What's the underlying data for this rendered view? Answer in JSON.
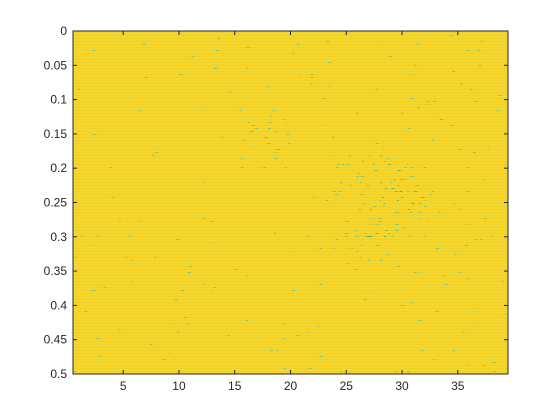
{
  "chart_data": {
    "type": "heatmap",
    "title": "",
    "xlabel": "",
    "ylabel": "",
    "x_range": [
      0.5,
      39.5
    ],
    "y_range": [
      0,
      0.5
    ],
    "y_direction": "reversed",
    "x_ticks": [
      5,
      10,
      15,
      20,
      25,
      30,
      35
    ],
    "x_tick_labels": [
      "5",
      "10",
      "15",
      "20",
      "25",
      "30",
      "35"
    ],
    "y_ticks": [
      0,
      0.05,
      0.1,
      0.15,
      0.2,
      0.25,
      0.3,
      0.35,
      0.4,
      0.45,
      0.5
    ],
    "y_tick_labels": [
      "0",
      "0.05",
      "0.1",
      "0.15",
      "0.2",
      "0.25",
      "0.3",
      "0.35",
      "0.4",
      "0.45",
      "0.5"
    ],
    "grid": false,
    "colormap": "parula",
    "colors": {
      "background": "#F9D527",
      "stripe": "#D9D23E",
      "speckle": "#5BC48E",
      "hot": "#3BB27C",
      "axis": "#262626"
    },
    "features": [
      {
        "label": "spot",
        "x": 28,
        "y": 0.205,
        "intensity": 0.9
      },
      {
        "label": "spot",
        "x": 30,
        "y": 0.245,
        "intensity": 1.0
      },
      {
        "label": "spot",
        "x": 28,
        "y": 0.3,
        "intensity": 0.8
      },
      {
        "label": "spot",
        "x": 18,
        "y": 0.16,
        "intensity": 0.35
      },
      {
        "label": "spot",
        "x": 25,
        "y": 0.165,
        "intensity": 0.3
      },
      {
        "label": "spot",
        "x": 31,
        "y": 0.11,
        "intensity": 0.25
      }
    ]
  }
}
